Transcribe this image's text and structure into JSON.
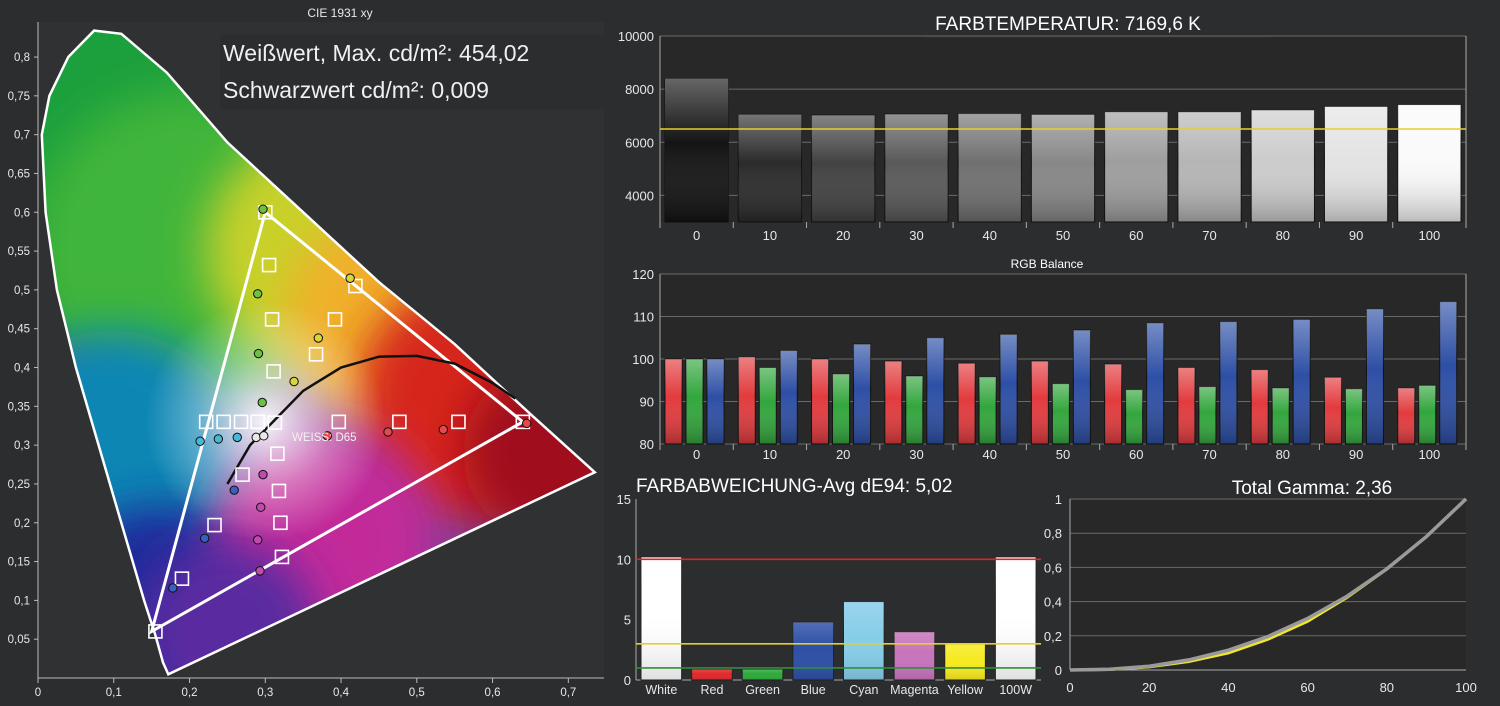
{
  "colors": {
    "background": "#2c2d2f",
    "plot_background": "#282828",
    "grid": "#6a6a6a",
    "text": "#e8e8e8",
    "red": "#e23b3e",
    "green": "#33a63d",
    "blue": "#2d4fa5",
    "reference_yellow": "#e6cf2a",
    "limit_red": "#d4272b",
    "limit_green": "#2f8f3a"
  },
  "cie": {
    "title": "CIE 1931 xy",
    "white_max_label": "Weißwert, Max. cd/m²: 454,02",
    "black_label": "Schwarzwert cd/m²: 0,009",
    "white_point_label": "WEISS: D65",
    "x_ticks": [
      "0",
      "0,1",
      "0,2",
      "0,3",
      "0,4",
      "0,5",
      "0,6",
      "0,7"
    ],
    "y_ticks": [
      "0,05",
      "0,1",
      "0,15",
      "0,2",
      "0,25",
      "0,3",
      "0,35",
      "0,4",
      "0,45",
      "0,5",
      "0,55",
      "0,6",
      "0,65",
      "0,7",
      "0,75",
      "0,8"
    ]
  },
  "chart_data": [
    {
      "type": "scatter",
      "title": "CIE 1931 xy",
      "xlim": [
        0,
        0.74
      ],
      "ylim": [
        0,
        0.84
      ],
      "gamut_target": [
        [
          0.64,
          0.33
        ],
        [
          0.3,
          0.6
        ],
        [
          0.15,
          0.06
        ]
      ],
      "gamut_measured": [
        [
          0.645,
          0.328
        ],
        [
          0.297,
          0.604
        ],
        [
          0.156,
          0.069
        ]
      ],
      "target_points": [
        [
          0.64,
          0.33
        ],
        [
          0.555,
          0.33
        ],
        [
          0.477,
          0.33
        ],
        [
          0.397,
          0.33
        ],
        [
          0.3,
          0.6
        ],
        [
          0.305,
          0.532
        ],
        [
          0.309,
          0.462
        ],
        [
          0.311,
          0.395
        ],
        [
          0.419,
          0.505
        ],
        [
          0.392,
          0.462
        ],
        [
          0.367,
          0.417
        ],
        [
          0.155,
          0.06
        ],
        [
          0.19,
          0.128
        ],
        [
          0.233,
          0.197
        ],
        [
          0.27,
          0.262
        ],
        [
          0.222,
          0.33
        ],
        [
          0.245,
          0.33
        ],
        [
          0.268,
          0.33
        ],
        [
          0.29,
          0.33
        ],
        [
          0.3127,
          0.329
        ],
        [
          0.316,
          0.289
        ],
        [
          0.318,
          0.241
        ],
        [
          0.32,
          0.2
        ],
        [
          0.322,
          0.156
        ]
      ],
      "measured_points": [
        {
          "x": 0.645,
          "y": 0.328,
          "c": "red"
        },
        {
          "x": 0.535,
          "y": 0.32,
          "c": "red"
        },
        {
          "x": 0.462,
          "y": 0.317,
          "c": "red"
        },
        {
          "x": 0.382,
          "y": 0.312,
          "c": "red"
        },
        {
          "x": 0.297,
          "y": 0.604,
          "c": "green"
        },
        {
          "x": 0.29,
          "y": 0.495,
          "c": "green"
        },
        {
          "x": 0.291,
          "y": 0.418,
          "c": "green"
        },
        {
          "x": 0.296,
          "y": 0.355,
          "c": "green"
        },
        {
          "x": 0.412,
          "y": 0.515,
          "c": "yellow"
        },
        {
          "x": 0.37,
          "y": 0.438,
          "c": "yellow"
        },
        {
          "x": 0.338,
          "y": 0.382,
          "c": "yellow"
        },
        {
          "x": 0.178,
          "y": 0.116,
          "c": "blue"
        },
        {
          "x": 0.22,
          "y": 0.18,
          "c": "blue"
        },
        {
          "x": 0.259,
          "y": 0.242,
          "c": "blue"
        },
        {
          "x": 0.214,
          "y": 0.305,
          "c": "cyan"
        },
        {
          "x": 0.238,
          "y": 0.308,
          "c": "cyan"
        },
        {
          "x": 0.263,
          "y": 0.31,
          "c": "cyan"
        },
        {
          "x": 0.288,
          "y": 0.31,
          "c": "white"
        },
        {
          "x": 0.298,
          "y": 0.312,
          "c": "white"
        },
        {
          "x": 0.297,
          "y": 0.262,
          "c": "magenta"
        },
        {
          "x": 0.294,
          "y": 0.22,
          "c": "magenta"
        },
        {
          "x": 0.29,
          "y": 0.178,
          "c": "magenta"
        },
        {
          "x": 0.293,
          "y": 0.138,
          "c": "magenta"
        }
      ]
    },
    {
      "type": "bar",
      "title": "FARBTEMPERATUR: 7169,6 K",
      "categories": [
        "0",
        "10",
        "20",
        "30",
        "40",
        "50",
        "60",
        "70",
        "80",
        "90",
        "100"
      ],
      "values": [
        8400,
        7050,
        7020,
        7060,
        7080,
        7050,
        7150,
        7150,
        7220,
        7350,
        7420
      ],
      "reference": 6500,
      "ylim": [
        3000,
        10000
      ],
      "y_ticks": [
        "4000",
        "6000",
        "8000",
        "10000"
      ]
    },
    {
      "type": "bar",
      "title": "RGB Balance",
      "categories": [
        "0",
        "10",
        "20",
        "30",
        "40",
        "50",
        "60",
        "70",
        "80",
        "90",
        "100"
      ],
      "series": [
        {
          "values": [
            100,
            100.5,
            100,
            99.5,
            99,
            99.5,
            98.8,
            98,
            97.5,
            95.7,
            93.2
          ]
        },
        {
          "values": [
            100,
            98,
            96.5,
            96,
            95.8,
            94.2,
            92.8,
            93.5,
            93.2,
            93,
            93.8
          ]
        },
        {
          "values": [
            100,
            102,
            103.5,
            105,
            105.8,
            106.8,
            108.5,
            108.8,
            109.3,
            111.8,
            113.5
          ]
        }
      ],
      "ylim": [
        80,
        120
      ],
      "y_ticks": [
        "80",
        "90",
        "100",
        "110",
        "120"
      ]
    },
    {
      "type": "bar",
      "title": "FARBABWEICHUNG-Avg dE94: 5,02",
      "categories": [
        "White",
        "Red",
        "Green",
        "Blue",
        "Cyan",
        "Magenta",
        "Yellow",
        "100W"
      ],
      "values": [
        10.2,
        0.9,
        0.9,
        4.8,
        6.5,
        4.0,
        3.0,
        10.2
      ],
      "thresholds": [
        10,
        3,
        1
      ],
      "ylim": [
        0,
        15
      ],
      "y_ticks": [
        "0",
        "5",
        "10",
        "15"
      ]
    },
    {
      "type": "line",
      "title": "Total Gamma: 2,36",
      "x": [
        0,
        10,
        20,
        30,
        40,
        50,
        60,
        70,
        80,
        90,
        100
      ],
      "series": [
        {
          "values": [
            0,
            0.004,
            0.022,
            0.059,
            0.116,
            0.196,
            0.301,
            0.432,
            0.591,
            0.78,
            1.0
          ]
        },
        {
          "values": [
            0,
            0.003,
            0.018,
            0.05,
            0.1,
            0.18,
            0.285,
            0.425,
            0.59,
            0.78,
            1.0
          ]
        }
      ],
      "xlim": [
        0,
        100
      ],
      "ylim": [
        0,
        1
      ],
      "x_ticks": [
        "0",
        "20",
        "40",
        "60",
        "80",
        "100"
      ],
      "y_ticks": [
        "0",
        "0,2",
        "0,4",
        "0,6",
        "0,8",
        "1"
      ]
    }
  ]
}
